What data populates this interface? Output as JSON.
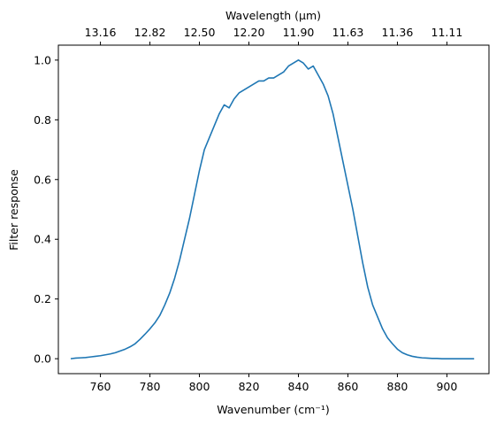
{
  "chart_data": {
    "type": "line",
    "title": "",
    "xlabel": "Wavenumber",
    "xlabel_unit": "(cm⁻¹)",
    "ylabel": "Filter response",
    "top_xlabel": "Wavelength",
    "top_xlabel_unit": "(μm)",
    "xlim": [
      743,
      917
    ],
    "ylim": [
      -0.05,
      1.05
    ],
    "x_ticks": [
      760,
      780,
      800,
      820,
      840,
      860,
      880,
      900
    ],
    "y_ticks": [
      "0.0",
      "0.2",
      "0.4",
      "0.6",
      "0.8",
      "1.0"
    ],
    "top_ticks": [
      {
        "label": "13.16",
        "wavenumber": 760.0
      },
      {
        "label": "12.82",
        "wavenumber": 780.0
      },
      {
        "label": "12.50",
        "wavenumber": 800.0
      },
      {
        "label": "12.20",
        "wavenumber": 820.0
      },
      {
        "label": "11.90",
        "wavenumber": 840.0
      },
      {
        "label": "11.63",
        "wavenumber": 860.0
      },
      {
        "label": "11.36",
        "wavenumber": 880.0
      },
      {
        "label": "11.11",
        "wavenumber": 900.0
      }
    ],
    "grid": false,
    "legend": "none",
    "color": "#1f77b4",
    "series": [
      {
        "x": [
          748,
          750,
          752,
          754,
          756,
          758,
          760,
          762,
          764,
          766,
          768,
          770,
          772,
          774,
          776,
          778,
          780,
          782,
          784,
          786,
          788,
          790,
          792,
          794,
          796,
          798,
          800,
          802,
          804,
          806,
          808,
          810,
          812,
          814,
          816,
          818,
          820,
          822,
          824,
          826,
          828,
          830,
          832,
          834,
          836,
          838,
          840,
          842,
          844,
          846,
          848,
          850,
          852,
          854,
          856,
          858,
          860,
          862,
          864,
          866,
          868,
          870,
          872,
          874,
          876,
          878,
          880,
          882,
          884,
          886,
          888,
          890,
          892,
          894,
          896,
          898,
          900,
          902,
          904,
          906,
          908,
          911
        ],
        "y": [
          0.0,
          0.002,
          0.003,
          0.004,
          0.006,
          0.008,
          0.01,
          0.013,
          0.016,
          0.02,
          0.026,
          0.032,
          0.04,
          0.05,
          0.065,
          0.082,
          0.1,
          0.12,
          0.145,
          0.18,
          0.22,
          0.27,
          0.33,
          0.4,
          0.47,
          0.55,
          0.63,
          0.7,
          0.74,
          0.78,
          0.82,
          0.85,
          0.84,
          0.87,
          0.89,
          0.9,
          0.91,
          0.92,
          0.93,
          0.93,
          0.94,
          0.94,
          0.95,
          0.96,
          0.98,
          0.99,
          1.0,
          0.99,
          0.97,
          0.98,
          0.95,
          0.92,
          0.88,
          0.82,
          0.74,
          0.66,
          0.58,
          0.5,
          0.41,
          0.32,
          0.24,
          0.18,
          0.14,
          0.1,
          0.07,
          0.05,
          0.032,
          0.02,
          0.013,
          0.008,
          0.005,
          0.003,
          0.002,
          0.001,
          0.001,
          0.0,
          0.0,
          0.0,
          0.0,
          0.0,
          0.0,
          0.0
        ]
      }
    ]
  }
}
